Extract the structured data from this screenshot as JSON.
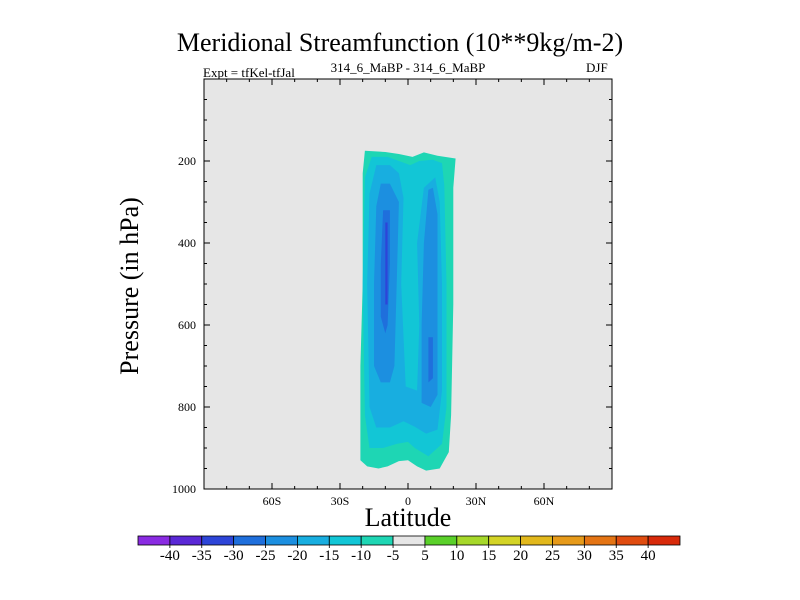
{
  "title": "Meridional Streamfunction (10**9kg/m-2)",
  "left_subtitle": "Expt = tfKel-tfJal",
  "center_subtitle": "314_6_MaBP - 314_6_MaBP",
  "right_subtitle": "DJF",
  "chart_data": {
    "type": "contour",
    "title": "Meridional Streamfunction (10**9kg/m-2)",
    "xlabel": "Latitude",
    "ylabel": "Pressure (in hPa)",
    "xlim": [
      -90,
      90
    ],
    "ylim": [
      1000,
      0
    ],
    "x_ticks": [
      -60,
      -30,
      0,
      30,
      60
    ],
    "x_tick_labels": [
      "60S",
      "30S",
      "0",
      "30N",
      "60N"
    ],
    "y_ticks": [
      200,
      400,
      600,
      800,
      1000
    ],
    "y_tick_labels": [
      "200",
      "400",
      "600",
      "800",
      "1000"
    ],
    "background_color": "#e6e6e6",
    "colorbar": {
      "levels": [
        -40,
        -35,
        -30,
        -25,
        -20,
        -15,
        -10,
        -5,
        5,
        10,
        15,
        20,
        25,
        30,
        35,
        40
      ],
      "labels": [
        "-40",
        "-35",
        "-30",
        "-25",
        "-20",
        "-15",
        "-10",
        "-5",
        "5",
        "10",
        "15",
        "20",
        "25",
        "30",
        "35",
        "40"
      ],
      "colors": [
        "#8a2be2",
        "#5a28d6",
        "#2d45d8",
        "#1f6fdc",
        "#1c8fe0",
        "#18aee0",
        "#12c6d6",
        "#1ed6b4",
        "#e6e6e6",
        "#5ad02a",
        "#a6d82a",
        "#d4d426",
        "#e2b81c",
        "#e69a1a",
        "#e47414",
        "#e04c10",
        "#d82a0a"
      ]
    },
    "regions": [
      {
        "level": "-5 to 5",
        "color": "#e6e6e6",
        "polygon": [
          [
            -22,
            1000
          ],
          [
            -22,
            150
          ],
          [
            20,
            150
          ],
          [
            20,
            1000
          ]
        ]
      },
      {
        "level": "-10 to -5",
        "color": "#1ed6b4",
        "polygon": [
          [
            -20,
            230
          ],
          [
            -19,
            175
          ],
          [
            -10,
            178
          ],
          [
            -4,
            183
          ],
          [
            2,
            190
          ],
          [
            7,
            179
          ],
          [
            13,
            187
          ],
          [
            21,
            194
          ],
          [
            20,
            265
          ],
          [
            20,
            550
          ],
          [
            19,
            820
          ],
          [
            18,
            910
          ],
          [
            14,
            950
          ],
          [
            8,
            955
          ],
          [
            4,
            945
          ],
          [
            0,
            930
          ],
          [
            -4,
            932
          ],
          [
            -9,
            945
          ],
          [
            -13,
            950
          ],
          [
            -18,
            945
          ],
          [
            -21,
            930
          ],
          [
            -21,
            700
          ],
          [
            -20,
            500
          ]
        ]
      },
      {
        "level": "-15 to -10",
        "color": "#12c6d6",
        "polygon": [
          [
            -19,
            240
          ],
          [
            -16,
            190
          ],
          [
            -9,
            190
          ],
          [
            -4,
            200
          ],
          [
            1,
            210
          ],
          [
            5,
            200
          ],
          [
            11,
            197
          ],
          [
            15,
            205
          ],
          [
            16,
            260
          ],
          [
            17,
            500
          ],
          [
            17,
            800
          ],
          [
            15,
            890
          ],
          [
            9,
            920
          ],
          [
            3,
            900
          ],
          [
            0,
            885
          ],
          [
            -5,
            890
          ],
          [
            -11,
            900
          ],
          [
            -17,
            900
          ],
          [
            -19,
            820
          ],
          [
            -20,
            500
          ]
        ]
      },
      {
        "level": "-20 to -15",
        "color": "#18aee0",
        "polygon": [
          [
            -17,
            280
          ],
          [
            -14,
            210
          ],
          [
            -8,
            210
          ],
          [
            -4,
            230
          ],
          [
            -2,
            290
          ],
          [
            -3,
            500
          ],
          [
            -1,
            750
          ],
          [
            4,
            760
          ],
          [
            5,
            600
          ],
          [
            4,
            400
          ],
          [
            7,
            265
          ],
          [
            12,
            240
          ],
          [
            14,
            300
          ],
          [
            15,
            500
          ],
          [
            15,
            760
          ],
          [
            13,
            855
          ],
          [
            8,
            865
          ],
          [
            3,
            848
          ],
          [
            -2,
            835
          ],
          [
            -8,
            850
          ],
          [
            -14,
            850
          ],
          [
            -17,
            800
          ],
          [
            -18,
            500
          ]
        ]
      },
      {
        "level": "-25 to -20",
        "color": "#1c8fe0",
        "polygon": [
          [
            -14,
            310
          ],
          [
            -12,
            255
          ],
          [
            -8,
            255
          ],
          [
            -4,
            300
          ],
          [
            -5,
            500
          ],
          [
            -6,
            700
          ],
          [
            -8,
            740
          ],
          [
            -12,
            740
          ],
          [
            -15,
            700
          ],
          [
            -15,
            500
          ]
        ]
      },
      {
        "level": "-25 to -20",
        "color": "#1c8fe0",
        "polygon": [
          [
            9,
            270
          ],
          [
            11,
            265
          ],
          [
            13,
            330
          ],
          [
            13,
            500
          ],
          [
            13,
            770
          ],
          [
            10,
            800
          ],
          [
            6,
            790
          ],
          [
            6,
            600
          ],
          [
            7,
            400
          ]
        ]
      },
      {
        "level": "-30 to -25",
        "color": "#1f6fdc",
        "polygon": [
          [
            -11,
            320
          ],
          [
            -8,
            320
          ],
          [
            -8,
            450
          ],
          [
            -9,
            600
          ],
          [
            -10,
            620
          ],
          [
            -12,
            580
          ],
          [
            -12,
            450
          ]
        ]
      },
      {
        "level": "-30 to -25",
        "color": "#1f6fdc",
        "polygon": [
          [
            9,
            630
          ],
          [
            11,
            630
          ],
          [
            11,
            730
          ],
          [
            9,
            740
          ]
        ]
      },
      {
        "level": "-35 to -30",
        "color": "#2d45d8",
        "polygon": [
          [
            -10,
            350
          ],
          [
            -9,
            350
          ],
          [
            -9,
            550
          ],
          [
            -10,
            550
          ]
        ]
      }
    ]
  }
}
